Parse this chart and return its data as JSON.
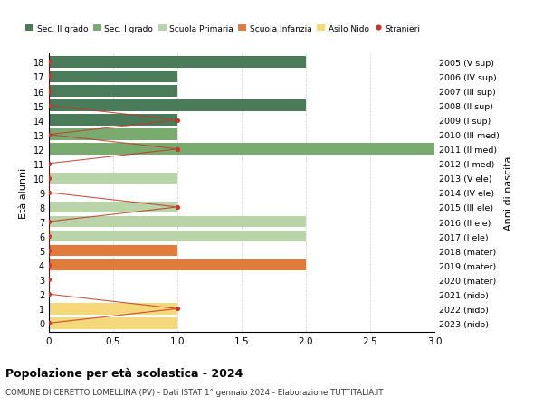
{
  "ages": [
    18,
    17,
    16,
    15,
    14,
    13,
    12,
    11,
    10,
    9,
    8,
    7,
    6,
    5,
    4,
    3,
    2,
    1,
    0
  ],
  "right_labels": [
    "2005 (V sup)",
    "2006 (IV sup)",
    "2007 (III sup)",
    "2008 (II sup)",
    "2009 (I sup)",
    "2010 (III med)",
    "2011 (II med)",
    "2012 (I med)",
    "2013 (V ele)",
    "2014 (IV ele)",
    "2015 (III ele)",
    "2016 (II ele)",
    "2017 (I ele)",
    "2018 (mater)",
    "2019 (mater)",
    "2020 (mater)",
    "2021 (nido)",
    "2022 (nido)",
    "2023 (nido)"
  ],
  "bar_values": [
    2,
    1,
    1,
    2,
    1,
    1,
    3,
    0,
    1,
    0,
    1,
    2,
    2,
    1,
    2,
    0,
    0,
    1,
    1
  ],
  "bar_colors": [
    "#4a7c59",
    "#4a7c59",
    "#4a7c59",
    "#4a7c59",
    "#4a7c59",
    "#7aab6e",
    "#7aab6e",
    "#7aab6e",
    "#b8d4a8",
    "#b8d4a8",
    "#b8d4a8",
    "#b8d4a8",
    "#b8d4a8",
    "#e07b39",
    "#e07b39",
    "#e07b39",
    "#f5d87a",
    "#f5d87a",
    "#f5d87a"
  ],
  "stranieri_x": [
    0,
    0,
    0,
    0,
    1,
    0,
    1,
    0,
    0,
    0,
    1,
    0,
    0,
    0,
    0,
    0,
    0,
    1,
    0
  ],
  "legend_labels": [
    "Sec. II grado",
    "Sec. I grado",
    "Scuola Primaria",
    "Scuola Infanzia",
    "Asilo Nido",
    "Stranieri"
  ],
  "legend_colors": [
    "#4a7c59",
    "#7aab6e",
    "#b8d4a8",
    "#e07b39",
    "#f5d87a",
    "#c0392b"
  ],
  "ylabel": "Età alunni",
  "right_ylabel": "Anni di nascita",
  "title": "Popolazione per età scolastica - 2024",
  "subtitle": "COMUNE DI CERETTO LOMELLINA (PV) - Dati ISTAT 1° gennaio 2024 - Elaborazione TUTTITALIA.IT",
  "xlim": [
    0,
    3.0
  ],
  "bg_color": "#ffffff",
  "grid_color": "#cccccc"
}
